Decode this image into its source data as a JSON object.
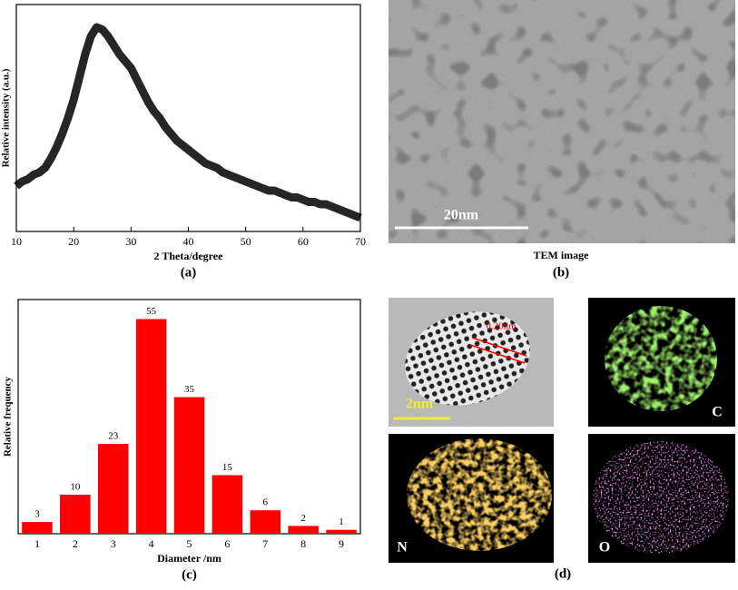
{
  "chart_data": [
    {
      "type": "line",
      "panel_label": "(a)",
      "ylabel": "Relative intensity (a.u.)",
      "xlabel": "2 Theta/degree",
      "x": [
        10,
        11,
        12,
        13,
        14,
        15,
        16,
        17,
        18,
        19,
        20,
        21,
        22,
        23,
        24,
        25,
        26,
        27,
        28,
        29,
        30,
        31,
        32,
        33,
        34,
        35,
        36,
        37,
        38,
        39,
        40,
        41,
        42,
        43,
        44,
        45,
        46,
        47,
        48,
        49,
        50,
        51,
        52,
        53,
        54,
        55,
        56,
        57,
        58,
        59,
        60,
        61,
        62,
        63,
        64,
        65,
        66,
        67,
        68,
        69,
        70
      ],
      "values": [
        20,
        22,
        23,
        25,
        26,
        28,
        32,
        37,
        43,
        50,
        58,
        68,
        78,
        86,
        90,
        89,
        86,
        82,
        78,
        75,
        72,
        67,
        62,
        57,
        53,
        50,
        46,
        43,
        40,
        38,
        36,
        34,
        32,
        30,
        29,
        28,
        26,
        25,
        24,
        23,
        22,
        21,
        20,
        19,
        18,
        18,
        17,
        16,
        15,
        15,
        14,
        13,
        13,
        12,
        12,
        11,
        10,
        9,
        8,
        7,
        6
      ],
      "color": "#000000",
      "xlim": [
        10,
        70
      ],
      "xticks": [
        10,
        20,
        30,
        40,
        50,
        60,
        70
      ],
      "ylim": [
        0,
        100
      ]
    },
    {
      "type": "bar",
      "panel_label": "(c)",
      "ylabel": "Relative frequency",
      "xlabel": "Diameter /nm",
      "categories": [
        "1",
        "2",
        "3",
        "4",
        "5",
        "6",
        "7",
        "8",
        "9"
      ],
      "values": [
        3,
        10,
        23,
        55,
        35,
        15,
        6,
        2,
        1
      ],
      "color": "#ff0000",
      "ylim": [
        0,
        60
      ]
    }
  ],
  "tem_panel": {
    "caption": "TEM image",
    "scale_bar": "20nm",
    "panel_label": "(b)"
  },
  "mapping_panel": {
    "lattice": "0.20nm",
    "scale_bar": "2nm",
    "elements": [
      "C",
      "N",
      "O"
    ],
    "panel_label": "(d)"
  }
}
